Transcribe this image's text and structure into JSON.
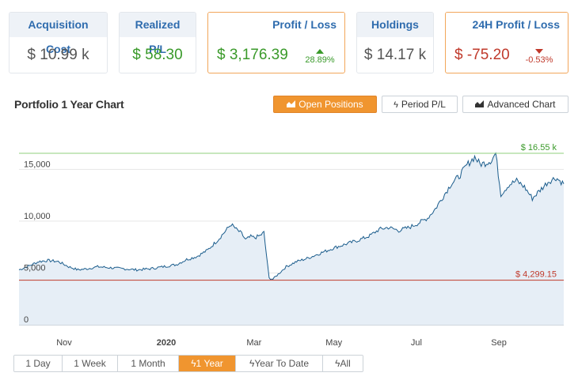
{
  "cards": {
    "acquisition": {
      "label": "Acquisition Cost",
      "value": "$ 10.99 k"
    },
    "realized": {
      "label": "Realized P/L",
      "value": "$ 58.30"
    },
    "profit_loss": {
      "label": "Profit / Loss",
      "value": "$ 3,176.39",
      "change": "28.89%",
      "direction": "up"
    },
    "holdings": {
      "label": "Holdings",
      "value": "$ 14.17 k"
    },
    "profit_24h": {
      "label": "24H Profit / Loss",
      "value": "$ -75.20",
      "change": "-0.53%",
      "direction": "down"
    }
  },
  "chart_header": {
    "title": "Portfolio 1 Year Chart",
    "buttons": {
      "open_positions": "Open Positions",
      "period_pl": "Period P/L",
      "advanced_chart": "Advanced Chart"
    }
  },
  "ranges": {
    "one_day": "1 Day",
    "one_week": "1 Week",
    "one_month": "1 Month",
    "one_year": "1 Year",
    "ytd": "Year To Date",
    "all": "All",
    "active": "1 Year"
  },
  "colors": {
    "accent": "#f0952f",
    "header_blue": "#2f6cae",
    "positive": "#3a9a2a",
    "negative": "#c0392b",
    "series_line": "#1a5c8c",
    "series_fill": "#e6eef6"
  },
  "chart_data": {
    "type": "area",
    "title": "Portfolio 1 Year Chart",
    "y_ticks": [
      0,
      5000,
      10000,
      15000
    ],
    "y_tick_labels": [
      "0",
      "5,000",
      "10,000",
      "15,000"
    ],
    "ylim": [
      0,
      18000
    ],
    "x_tick_labels": [
      "Nov",
      "2020",
      "Mar",
      "May",
      "Jul",
      "Sep"
    ],
    "x_tick_index": [
      26,
      104,
      171,
      232,
      295,
      358
    ],
    "max_line": {
      "value": 16550,
      "label": "$ 16.55 k"
    },
    "min_line": {
      "value": 4299.15,
      "label": "$ 4,299.15"
    },
    "grid": true,
    "legend": "none",
    "anchors": [
      [
        0,
        5300
      ],
      [
        8,
        5700
      ],
      [
        15,
        6100
      ],
      [
        22,
        6200
      ],
      [
        30,
        6100
      ],
      [
        38,
        5600
      ],
      [
        45,
        5300
      ],
      [
        52,
        5400
      ],
      [
        60,
        5600
      ],
      [
        70,
        5500
      ],
      [
        80,
        5400
      ],
      [
        90,
        5300
      ],
      [
        100,
        5400
      ],
      [
        110,
        5600
      ],
      [
        120,
        5800
      ],
      [
        128,
        6300
      ],
      [
        136,
        6600
      ],
      [
        144,
        7200
      ],
      [
        152,
        8200
      ],
      [
        158,
        9100
      ],
      [
        162,
        9700
      ],
      [
        166,
        9200
      ],
      [
        170,
        8800
      ],
      [
        173,
        8200
      ],
      [
        177,
        8500
      ],
      [
        180,
        8400
      ],
      [
        184,
        8600
      ],
      [
        187,
        8900
      ],
      [
        191,
        4500
      ],
      [
        194,
        4400
      ],
      [
        198,
        4900
      ],
      [
        204,
        5600
      ],
      [
        212,
        6100
      ],
      [
        220,
        6400
      ],
      [
        230,
        6900
      ],
      [
        240,
        7400
      ],
      [
        250,
        7800
      ],
      [
        260,
        8200
      ],
      [
        268,
        8600
      ],
      [
        275,
        9200
      ],
      [
        282,
        9400
      ],
      [
        290,
        9100
      ],
      [
        298,
        9400
      ],
      [
        305,
        9800
      ],
      [
        312,
        10300
      ],
      [
        318,
        11200
      ],
      [
        324,
        12400
      ],
      [
        330,
        13600
      ],
      [
        336,
        14300
      ],
      [
        342,
        15400
      ],
      [
        348,
        16200
      ],
      [
        352,
        15500
      ],
      [
        356,
        15600
      ],
      [
        361,
        15900
      ],
      [
        364,
        16550
      ],
      [
        368,
        12600
      ],
      [
        374,
        13500
      ],
      [
        380,
        13900
      ],
      [
        386,
        13300
      ],
      [
        392,
        12200
      ],
      [
        398,
        13000
      ],
      [
        404,
        13800
      ],
      [
        410,
        14200
      ],
      [
        416,
        13600
      ]
    ]
  }
}
